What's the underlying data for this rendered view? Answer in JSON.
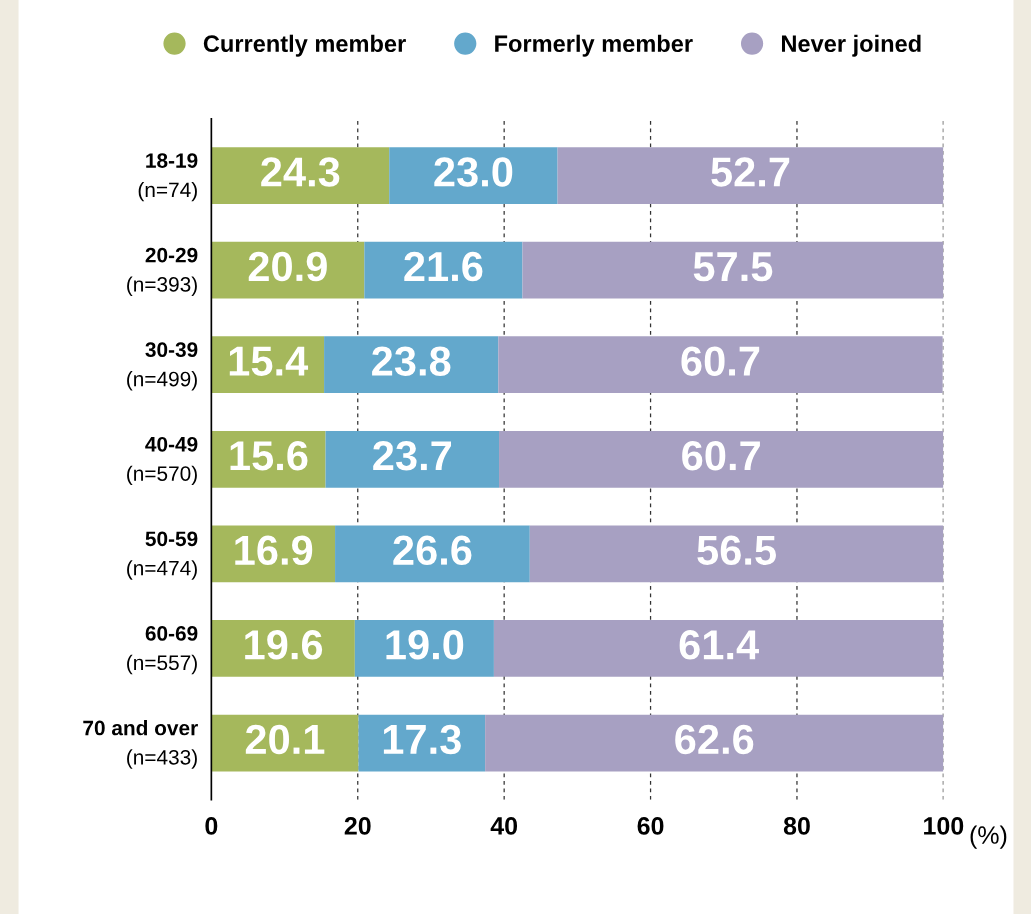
{
  "chart_data": {
    "type": "bar",
    "orientation": "horizontal",
    "stacked": true,
    "categories": [
      "18-19\n(n=74)",
      "20-29\n(n=393)",
      "30-39\n(n=499)",
      "40-49\n(n=570)",
      "50-59\n(n=474)",
      "60-69\n(n=557)",
      "70 and over\n(n=433)"
    ],
    "series": [
      {
        "name": "Currently member",
        "color": "#a5b85c",
        "values": [
          24.3,
          20.9,
          15.4,
          15.6,
          16.9,
          19.6,
          20.1
        ],
        "value_labels": [
          "24.3",
          "20.9",
          "15.4",
          "15.6",
          "16.9",
          "19.6",
          "20.1"
        ]
      },
      {
        "name": "Formerly member",
        "color": "#63a8cc",
        "values": [
          23.0,
          21.6,
          23.8,
          23.7,
          26.6,
          19.0,
          17.3
        ],
        "value_labels": [
          "23.0",
          "21.6",
          "23.8",
          "23.7",
          "26.6",
          "19.0",
          "17.3"
        ]
      },
      {
        "name": "Never joined",
        "color": "#a7a0c2",
        "values": [
          52.7,
          57.5,
          60.7,
          60.7,
          56.5,
          61.4,
          62.6
        ],
        "value_labels": [
          "52.7",
          "57.5",
          "60.7",
          "60.7",
          "56.5",
          "61.4",
          "62.6"
        ]
      }
    ],
    "xlim": [
      0,
      100
    ],
    "xticks": [
      0,
      20,
      40,
      60,
      80,
      100
    ],
    "xlabel": "(%)",
    "grid": "x",
    "legend": "top right"
  }
}
